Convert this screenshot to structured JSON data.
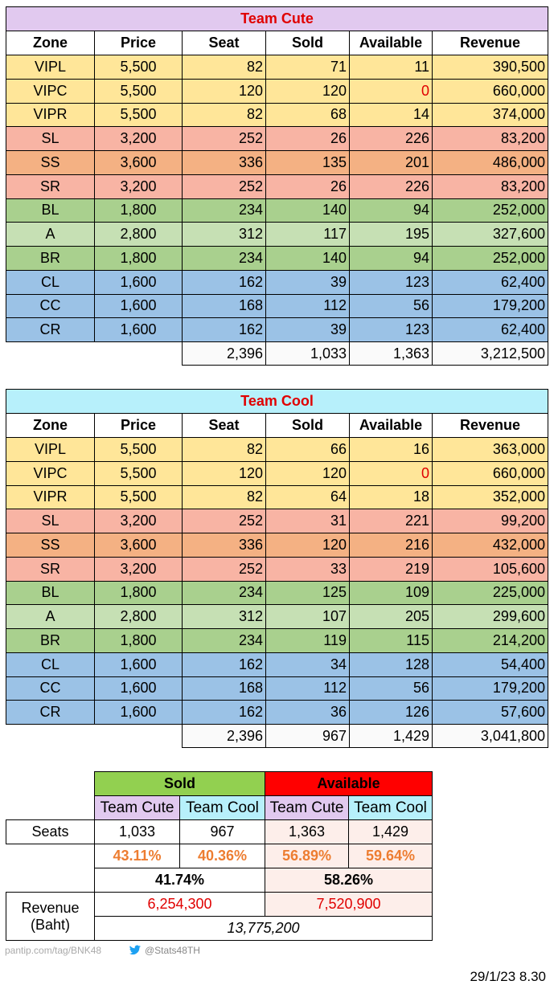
{
  "tables": [
    {
      "title": "Team Cute",
      "columns": [
        "Zone",
        "Price",
        "Seat",
        "Sold",
        "Available",
        "Revenue"
      ],
      "rows": [
        [
          "VIPL",
          "5,500",
          "82",
          "71",
          "11",
          "390,500"
        ],
        [
          "VIPC",
          "5,500",
          "120",
          "120",
          "0",
          "660,000"
        ],
        [
          "VIPR",
          "5,500",
          "82",
          "68",
          "14",
          "374,000"
        ],
        [
          "SL",
          "3,200",
          "252",
          "26",
          "226",
          "83,200"
        ],
        [
          "SS",
          "3,600",
          "336",
          "135",
          "201",
          "486,000"
        ],
        [
          "SR",
          "3,200",
          "252",
          "26",
          "226",
          "83,200"
        ],
        [
          "BL",
          "1,800",
          "234",
          "140",
          "94",
          "252,000"
        ],
        [
          "A",
          "2,800",
          "312",
          "117",
          "195",
          "327,600"
        ],
        [
          "BR",
          "1,800",
          "234",
          "140",
          "94",
          "252,000"
        ],
        [
          "CL",
          "1,600",
          "162",
          "39",
          "123",
          "62,400"
        ],
        [
          "CC",
          "1,600",
          "168",
          "112",
          "56",
          "179,200"
        ],
        [
          "CR",
          "1,600",
          "162",
          "39",
          "123",
          "62,400"
        ]
      ],
      "totals": [
        "2,396",
        "1,033",
        "1,363",
        "3,212,500"
      ]
    },
    {
      "title": "Team Cool",
      "columns": [
        "Zone",
        "Price",
        "Seat",
        "Sold",
        "Available",
        "Revenue"
      ],
      "rows": [
        [
          "VIPL",
          "5,500",
          "82",
          "66",
          "16",
          "363,000"
        ],
        [
          "VIPC",
          "5,500",
          "120",
          "120",
          "0",
          "660,000"
        ],
        [
          "VIPR",
          "5,500",
          "82",
          "64",
          "18",
          "352,000"
        ],
        [
          "SL",
          "3,200",
          "252",
          "31",
          "221",
          "99,200"
        ],
        [
          "SS",
          "3,600",
          "336",
          "120",
          "216",
          "432,000"
        ],
        [
          "SR",
          "3,200",
          "252",
          "33",
          "219",
          "105,600"
        ],
        [
          "BL",
          "1,800",
          "234",
          "125",
          "109",
          "225,000"
        ],
        [
          "A",
          "2,800",
          "312",
          "107",
          "205",
          "299,600"
        ],
        [
          "BR",
          "1,800",
          "234",
          "119",
          "115",
          "214,200"
        ],
        [
          "CL",
          "1,600",
          "162",
          "34",
          "128",
          "54,400"
        ],
        [
          "CC",
          "1,600",
          "168",
          "112",
          "56",
          "179,200"
        ],
        [
          "CR",
          "1,600",
          "162",
          "36",
          "126",
          "57,600"
        ]
      ],
      "totals": [
        "2,396",
        "967",
        "1,429",
        "3,041,800"
      ]
    }
  ],
  "summary": {
    "sold_header": "Sold",
    "available_header": "Available",
    "subheaders": [
      "Team Cute",
      "Team Cool",
      "Team Cute",
      "Team Cool"
    ],
    "seats_label": "Seats",
    "seats": [
      "1,033",
      "967",
      "1,363",
      "1,429"
    ],
    "percents": [
      "43.11%",
      "40.36%",
      "56.89%",
      "59.64%"
    ],
    "combined": [
      "41.74%",
      "58.26%"
    ],
    "revenue_label": [
      "Revenue",
      "(Baht)"
    ],
    "revenue": [
      "6,254,300",
      "7,520,900"
    ],
    "total_revenue": "13,775,200"
  },
  "footer": {
    "source": "pantip.com/tag/BNK48",
    "handle": "@Stats48TH",
    "date": "29/1/23 8.30"
  }
}
